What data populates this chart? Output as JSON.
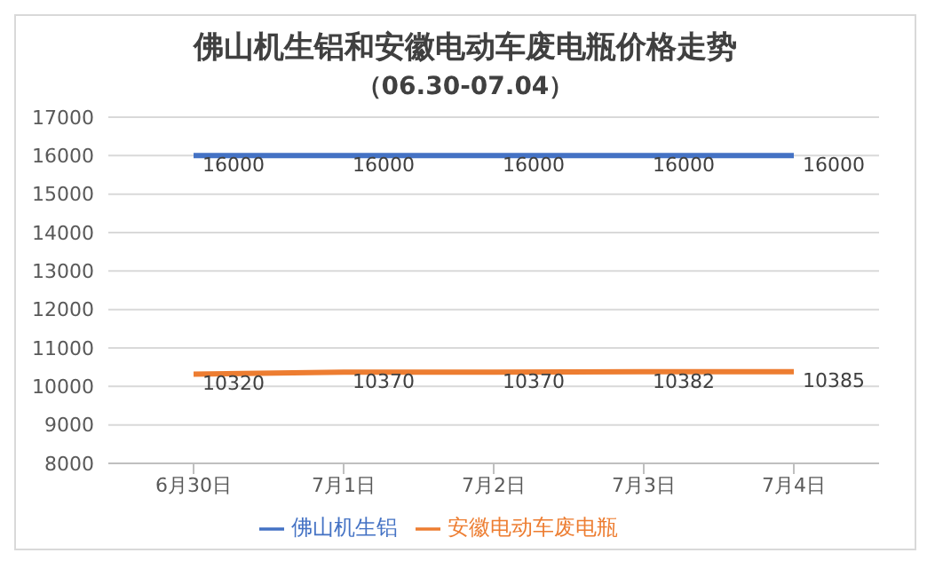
{
  "chart_data": {
    "type": "line",
    "title": "佛山机生铝和安徽电动车废电瓶价格走势",
    "subtitle": "（06.30-07.04）",
    "categories": [
      "6月30日",
      "7月1日",
      "7月2日",
      "7月3日",
      "7月4日"
    ],
    "series": [
      {
        "name": "佛山机生铝",
        "color": "#4472c4",
        "values": [
          16000,
          16000,
          16000,
          16000,
          16000
        ]
      },
      {
        "name": "安徽电动车废电瓶",
        "color": "#ed7d31",
        "values": [
          10320,
          10370,
          10370,
          10382,
          10385
        ]
      }
    ],
    "ylim": [
      8000,
      17000
    ],
    "yticks": [
      8000,
      9000,
      10000,
      11000,
      12000,
      13000,
      14000,
      15000,
      16000,
      17000
    ],
    "grid": "y",
    "legend": "bottom",
    "data_labels": true,
    "marker": "none",
    "line_style": "solid"
  }
}
